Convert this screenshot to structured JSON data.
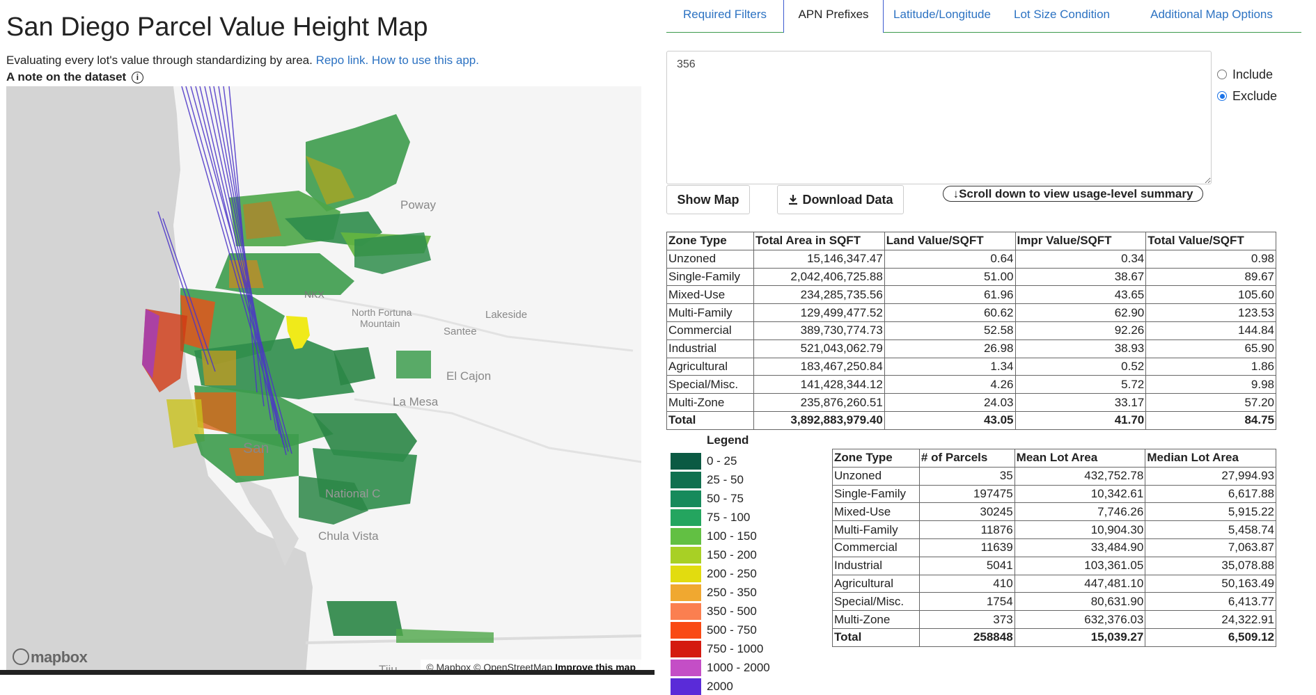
{
  "header": {
    "title": "San Diego Parcel Value Height Map",
    "subtitle": "Evaluating every lot's value through standardizing by area.",
    "repo_link": "Repo link.",
    "howto_link": "How to use this app.",
    "note": "A note on the dataset",
    "info_glyph": "i"
  },
  "map": {
    "labels": {
      "poway": "Poway",
      "nkx": "NKX",
      "north_fortuna_1": "North Fortuna",
      "north_fortuna_2": "Mountain",
      "lakeside": "Lakeside",
      "santee": "Santee",
      "el_cajon": "El Cajon",
      "la_mesa": "La Mesa",
      "san": "San",
      "national_city": "National C",
      "chula_vista": "Chula Vista",
      "tiju": "Tiju"
    },
    "logo": "mapbox",
    "attribution": "© Mapbox © OpenStreetMap",
    "improve": "Improve this map"
  },
  "tabs": [
    {
      "label": "Required Filters"
    },
    {
      "label": "APN Prefixes"
    },
    {
      "label": "Latitude/Longitude"
    },
    {
      "label": "Lot Size Condition"
    },
    {
      "label": "Additional Map Options"
    }
  ],
  "apn": {
    "value": "356",
    "include_label": "Include",
    "exclude_label": "Exclude",
    "selected": "Exclude"
  },
  "buttons": {
    "show_map": "Show Map",
    "download": "Download Data",
    "scroll": "↓Scroll down to view usage-level summary"
  },
  "value_table": {
    "headers": [
      "Zone Type",
      "Total Area in SQFT",
      "Land Value/SQFT",
      "Impr Value/SQFT",
      "Total Value/SQFT"
    ],
    "rows": [
      [
        "Unzoned",
        "15,146,347.47",
        "0.64",
        "0.34",
        "0.98"
      ],
      [
        "Single-Family",
        "2,042,406,725.88",
        "51.00",
        "38.67",
        "89.67"
      ],
      [
        "Mixed-Use",
        "234,285,735.56",
        "61.96",
        "43.65",
        "105.60"
      ],
      [
        "Multi-Family",
        "129,499,477.52",
        "60.62",
        "62.90",
        "123.53"
      ],
      [
        "Commercial",
        "389,730,774.73",
        "52.58",
        "92.26",
        "144.84"
      ],
      [
        "Industrial",
        "521,043,062.79",
        "26.98",
        "38.93",
        "65.90"
      ],
      [
        "Agricultural",
        "183,467,250.84",
        "1.34",
        "0.52",
        "1.86"
      ],
      [
        "Special/Misc.",
        "141,428,344.12",
        "4.26",
        "5.72",
        "9.98"
      ],
      [
        "Multi-Zone",
        "235,876,260.51",
        "24.03",
        "33.17",
        "57.20"
      ],
      [
        "Total",
        "3,892,883,979.40",
        "43.05",
        "41.70",
        "84.75"
      ]
    ]
  },
  "parcel_table": {
    "headers": [
      "Zone Type",
      "# of Parcels",
      "Mean Lot Area",
      "Median Lot Area"
    ],
    "rows": [
      [
        "Unzoned",
        "35",
        "432,752.78",
        "27,994.93"
      ],
      [
        "Single-Family",
        "197475",
        "10,342.61",
        "6,617.88"
      ],
      [
        "Mixed-Use",
        "30245",
        "7,746.26",
        "5,915.22"
      ],
      [
        "Multi-Family",
        "11876",
        "10,904.30",
        "5,458.74"
      ],
      [
        "Commercial",
        "11639",
        "33,484.90",
        "7,063.87"
      ],
      [
        "Industrial",
        "5041",
        "103,361.05",
        "35,078.88"
      ],
      [
        "Agricultural",
        "410",
        "447,481.10",
        "50,163.49"
      ],
      [
        "Special/Misc.",
        "1754",
        "80,631.90",
        "6,413.77"
      ],
      [
        "Multi-Zone",
        "373",
        "632,376.03",
        "24,322.91"
      ],
      [
        "Total",
        "258848",
        "15,039.27",
        "6,509.12"
      ]
    ]
  },
  "legend": {
    "title": "Legend",
    "items": [
      {
        "label": "0 - 25",
        "color": "#0b5a43"
      },
      {
        "label": "25 - 50",
        "color": "#10704f"
      },
      {
        "label": "50 - 75",
        "color": "#178a5b"
      },
      {
        "label": "75 - 100",
        "color": "#24a55f"
      },
      {
        "label": "100 - 150",
        "color": "#62c043"
      },
      {
        "label": "150 - 200",
        "color": "#a8d025"
      },
      {
        "label": "200 - 250",
        "color": "#e2dc0f"
      },
      {
        "label": "250 - 350",
        "color": "#f0a830"
      },
      {
        "label": "350 - 500",
        "color": "#fb7f50"
      },
      {
        "label": "500 - 750",
        "color": "#f94a14"
      },
      {
        "label": "750 - 1000",
        "color": "#d41a10"
      },
      {
        "label": "1000 - 2000",
        "color": "#c44ec6"
      },
      {
        "label": "2000",
        "color": "#5a2bd8"
      }
    ]
  }
}
